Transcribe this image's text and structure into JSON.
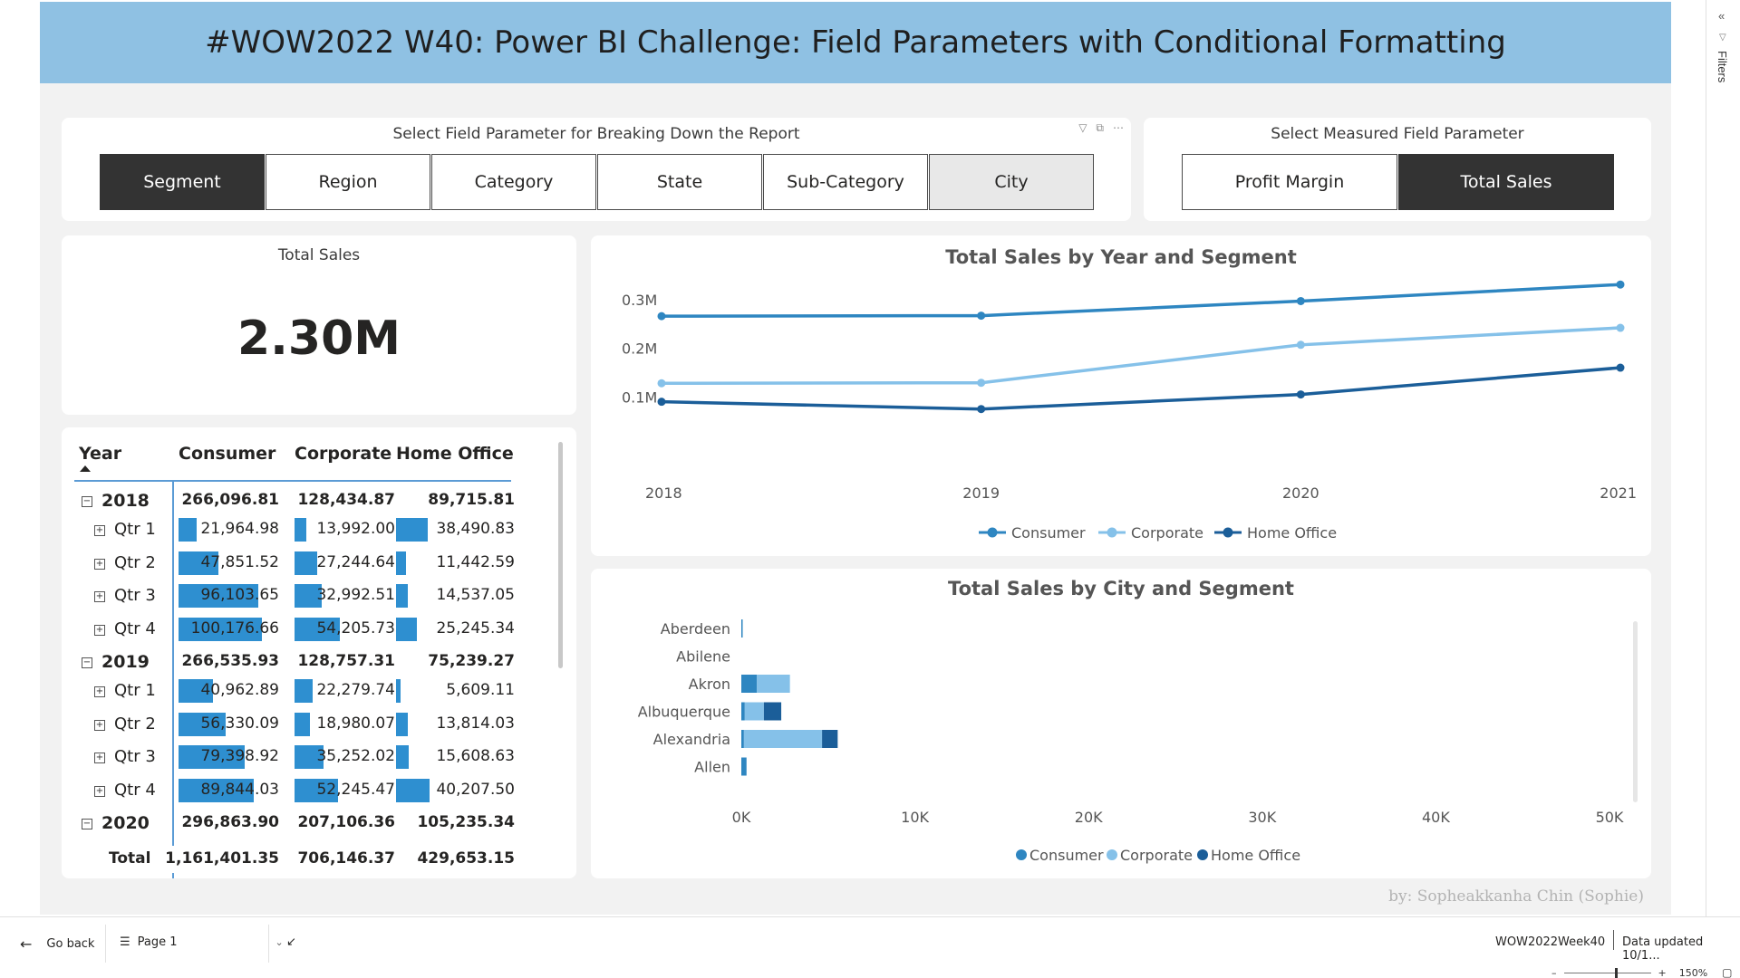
{
  "banner": {
    "title": "#WOW2022 W40: Power BI Challenge: Field Parameters with Conditional Formatting"
  },
  "breakdown_slicer": {
    "title": "Select Field Parameter for Breaking Down the Report",
    "options": [
      "Segment",
      "Region",
      "Category",
      "State",
      "Sub-Category",
      "City"
    ],
    "selected": "Segment"
  },
  "measure_slicer": {
    "title": "Select Measured Field Parameter",
    "options": [
      "Profit Margin",
      "Total Sales"
    ],
    "selected": "Total Sales"
  },
  "kpi": {
    "title": "Total Sales",
    "value": "2.30M"
  },
  "matrix": {
    "headers": [
      "Year",
      "Consumer",
      "Corporate",
      "Home Office"
    ],
    "rows": [
      {
        "label": "2018",
        "level": 0,
        "values": [
          "266,096.81",
          "128,434.87",
          "89,715.81"
        ]
      },
      {
        "label": "Qtr 1",
        "level": 1,
        "values": [
          "21,964.98",
          "13,992.00",
          "38,490.83"
        ],
        "raw": [
          21964.98,
          13992.0,
          38490.83
        ]
      },
      {
        "label": "Qtr 2",
        "level": 1,
        "values": [
          "47,851.52",
          "27,244.64",
          "11,442.59"
        ],
        "raw": [
          47851.52,
          27244.64,
          11442.59
        ]
      },
      {
        "label": "Qtr 3",
        "level": 1,
        "values": [
          "96,103.65",
          "32,992.51",
          "14,537.05"
        ],
        "raw": [
          96103.65,
          32992.51,
          14537.05
        ]
      },
      {
        "label": "Qtr 4",
        "level": 1,
        "values": [
          "100,176.66",
          "54,205.73",
          "25,245.34"
        ],
        "raw": [
          100176.66,
          54205.73,
          25245.34
        ]
      },
      {
        "label": "2019",
        "level": 0,
        "values": [
          "266,535.93",
          "128,757.31",
          "75,239.27"
        ]
      },
      {
        "label": "Qtr 1",
        "level": 1,
        "values": [
          "40,962.89",
          "22,279.74",
          "5,609.11"
        ],
        "raw": [
          40962.89,
          22279.74,
          5609.11
        ]
      },
      {
        "label": "Qtr 2",
        "level": 1,
        "values": [
          "56,330.09",
          "18,980.07",
          "13,814.03"
        ],
        "raw": [
          56330.09,
          18980.07,
          13814.03
        ]
      },
      {
        "label": "Qtr 3",
        "level": 1,
        "values": [
          "79,398.92",
          "35,252.02",
          "15,608.63"
        ],
        "raw": [
          79398.92,
          35252.02,
          15608.63
        ]
      },
      {
        "label": "Qtr 4",
        "level": 1,
        "values": [
          "89,844.03",
          "52,245.47",
          "40,207.50"
        ],
        "raw": [
          89844.03,
          52245.47,
          40207.5
        ]
      },
      {
        "label": "2020",
        "level": 0,
        "values": [
          "296,863.90",
          "207,106.36",
          "105,235.34"
        ]
      }
    ],
    "total": {
      "label": "Total",
      "values": [
        "1,161,401.35",
        "706,146.37",
        "429,653.15"
      ]
    }
  },
  "chart_data": [
    {
      "type": "line",
      "title": "Total Sales by Year and Segment",
      "x": [
        "2018",
        "2019",
        "2020",
        "2021"
      ],
      "ylim": [
        0,
        0.35
      ],
      "yticks": [
        "0.1M",
        "0.2M",
        "0.3M"
      ],
      "ytick_values": [
        0.1,
        0.2,
        0.3
      ],
      "legend_position": "bottom",
      "series": [
        {
          "name": "Consumer",
          "values": [
            0.266,
            0.267,
            0.297,
            0.331
          ],
          "color": "#2e86c1"
        },
        {
          "name": "Corporate",
          "values": [
            0.128,
            0.129,
            0.207,
            0.242
          ],
          "color": "#85c1e9"
        },
        {
          "name": "Home Office",
          "values": [
            0.09,
            0.075,
            0.105,
            0.16
          ],
          "color": "#1b5e99"
        }
      ]
    },
    {
      "type": "bar",
      "orientation": "horizontal",
      "stacked": true,
      "title": "Total Sales by City and Segment",
      "categories": [
        "Aberdeen",
        "Abilene",
        "Akron",
        "Albuquerque",
        "Alexandria",
        "Allen"
      ],
      "xlim": [
        0,
        50000
      ],
      "xticks": [
        "0K",
        "10K",
        "20K",
        "30K",
        "40K",
        "50K"
      ],
      "legend_position": "bottom",
      "series": [
        {
          "name": "Consumer",
          "values": [
            25,
            0,
            900,
            200,
            150,
            300
          ],
          "color": "#2e86c1"
        },
        {
          "name": "Corporate",
          "values": [
            0,
            0,
            1900,
            1100,
            4500,
            0
          ],
          "color": "#85c1e9"
        },
        {
          "name": "Home Office",
          "values": [
            0,
            0,
            0,
            1000,
            900,
            0
          ],
          "color": "#1b5e99"
        }
      ]
    }
  ],
  "credit": "by: Sopheakkanha Chin (Sophie)",
  "filters_pane": {
    "label": "Filters"
  },
  "footer": {
    "go_back": "Go back",
    "page": "Page 1",
    "report_name": "WOW2022Week40",
    "data_updated": "Data updated 10/1...",
    "zoom": "150%"
  },
  "colors": {
    "banner": "#8fc1e3",
    "selected": "#333333",
    "bar": "#2e8fd0"
  }
}
